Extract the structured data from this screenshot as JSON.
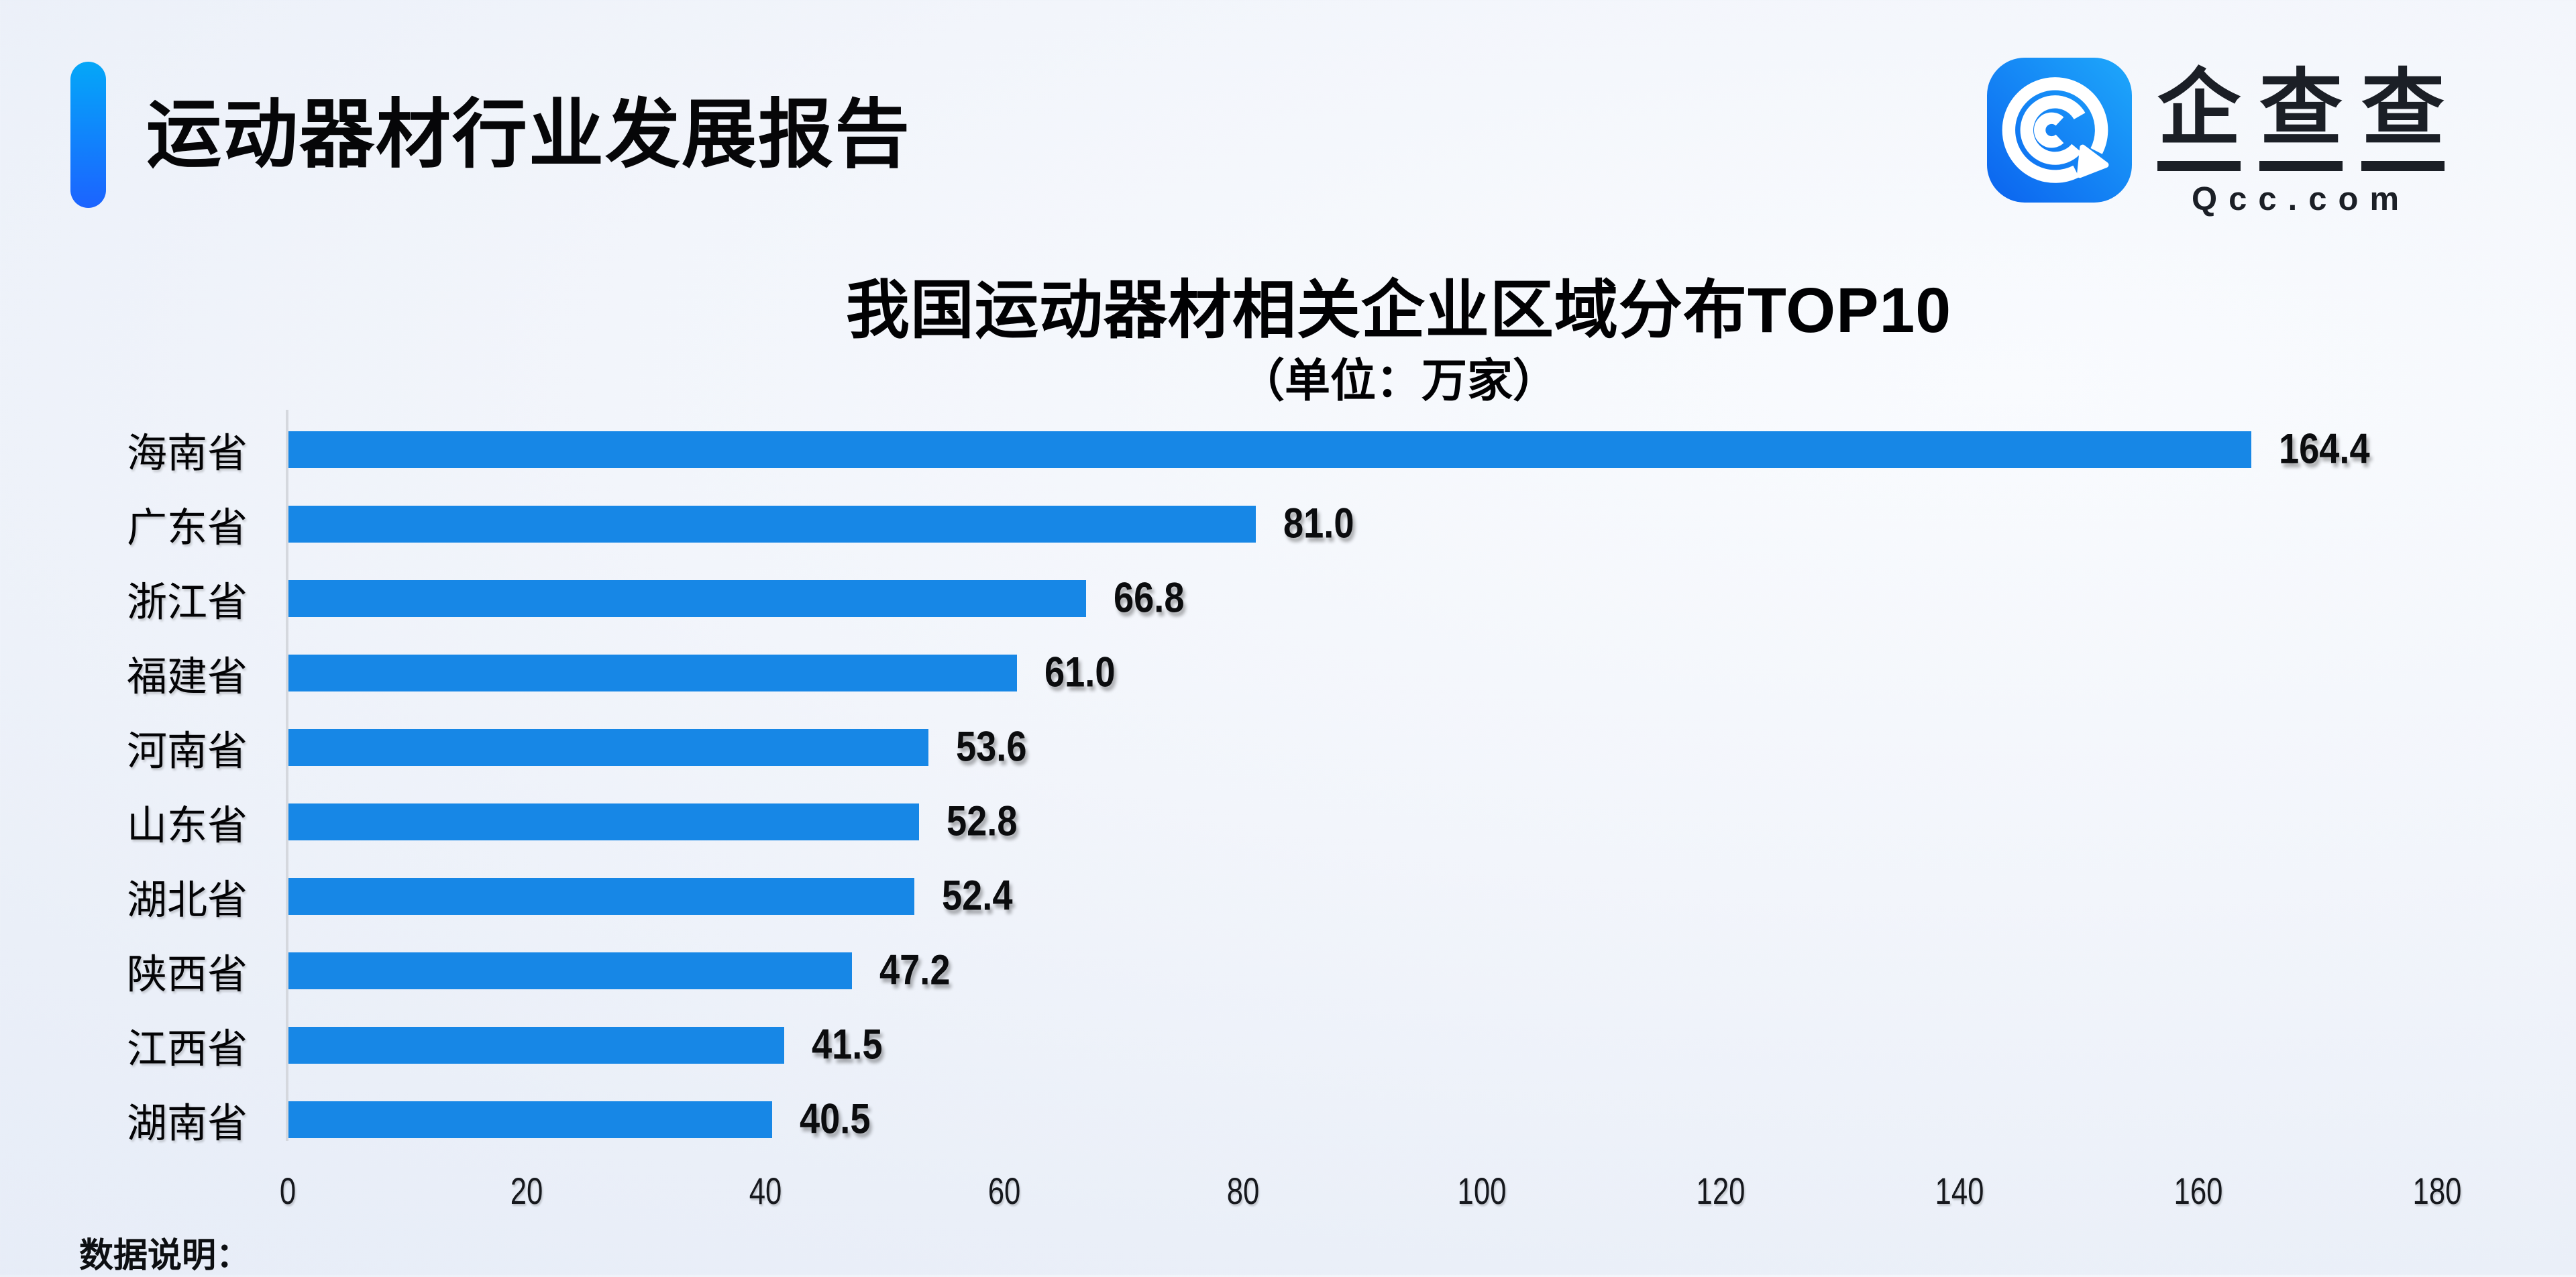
{
  "colors": {
    "bar": "#1787E6",
    "accent_top": "#04A7F8",
    "accent_bottom": "#1C63FF",
    "logo_blue_dark": "#0B63EF",
    "logo_blue_light": "#1EA8FB",
    "axis_line": "#D5D8DE",
    "background": "#EDF1F9"
  },
  "header": {
    "title": "运动器材行业发展报告"
  },
  "logo": {
    "brand_chars": [
      "企",
      "查",
      "查"
    ],
    "brand_text": "企查查",
    "domain_text": "Qcc.com",
    "icon": "qcc-magnifier-icon"
  },
  "chart_data": {
    "type": "bar",
    "orientation": "horizontal",
    "title": "我国运动器材相关企业区域分布TOP10",
    "subtitle": "（单位：万家）",
    "unit": "万家",
    "categories": [
      "海南省",
      "广东省",
      "浙江省",
      "福建省",
      "河南省",
      "山东省",
      "湖北省",
      "陕西省",
      "江西省",
      "湖南省"
    ],
    "values": [
      164.4,
      81.0,
      66.8,
      61.0,
      53.6,
      52.8,
      52.4,
      47.2,
      41.5,
      40.5
    ],
    "values_display": [
      "164.4",
      "81.0",
      "66.8",
      "61.0",
      "53.6",
      "52.8",
      "52.4",
      "47.2",
      "41.5",
      "40.5"
    ],
    "xlim": [
      0,
      180
    ],
    "x_ticks": [
      0,
      20,
      40,
      60,
      80,
      100,
      120,
      140,
      160,
      180
    ],
    "grid": false,
    "value_label_position": "end-of-bar",
    "legend": "none"
  },
  "footer": {
    "note_label": "数据说明："
  }
}
